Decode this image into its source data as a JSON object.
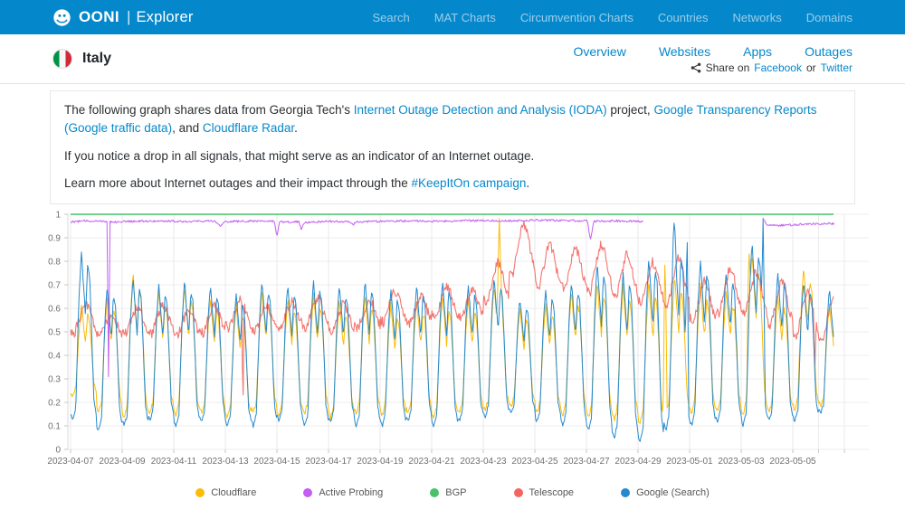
{
  "theme": {
    "brand_blue": "#0588CB",
    "header_border": "#e3e3e3"
  },
  "navbar": {
    "brand": {
      "name": "OONI",
      "separator": "|",
      "product": "Explorer"
    },
    "items": [
      "Search",
      "MAT Charts",
      "Circumvention Charts",
      "Countries",
      "Networks",
      "Domains"
    ]
  },
  "header": {
    "country": "Italy",
    "tabs": [
      "Overview",
      "Websites",
      "Apps",
      "Outages"
    ],
    "share": {
      "prefix": "Share on",
      "facebook": "Facebook",
      "conjunction": "or",
      "twitter": "Twitter"
    }
  },
  "info_box": {
    "p1": [
      {
        "t": "The following graph shares data from Georgia Tech's "
      },
      {
        "t": "Internet Outage Detection and Analysis (IODA)",
        "link": true
      },
      {
        "t": " project, "
      },
      {
        "t": "Google Transparency Reports (Google traffic data)",
        "link": true
      },
      {
        "t": ", and "
      },
      {
        "t": "Cloudflare Radar",
        "link": true
      },
      {
        "t": "."
      }
    ],
    "p2": "If you notice a drop in all signals, that might serve as an indicator of an Internet outage.",
    "p3": [
      {
        "t": "Learn more about Internet outages and their impact through the "
      },
      {
        "t": "#KeepItOn campaign",
        "link": true
      },
      {
        "t": "."
      }
    ]
  },
  "chart_data": {
    "type": "line",
    "title": "",
    "xlabel": "",
    "ylabel": "",
    "ylim": [
      0,
      1
    ],
    "grid": true,
    "legend_position": "bottom",
    "data_end_day": 29.6,
    "x_start_date": "2023-04-07",
    "y_ticks": [
      {
        "v": 1,
        "label": "1"
      },
      {
        "v": 0.9,
        "label": "0.9"
      },
      {
        "v": 0.8,
        "label": "0.8"
      },
      {
        "v": 0.7,
        "label": "0.7"
      },
      {
        "v": 0.6,
        "label": "0.6"
      },
      {
        "v": 0.5,
        "label": "0.5"
      },
      {
        "v": 0.4,
        "label": "0.4"
      },
      {
        "v": 0.3,
        "label": "0.3"
      },
      {
        "v": 0.2,
        "label": "0.2"
      },
      {
        "v": 0.1,
        "label": "0.1"
      },
      {
        "v": 0,
        "label": "0"
      }
    ],
    "x_ticks": [
      {
        "day": 0,
        "label": "2023-04-07"
      },
      {
        "day": 2,
        "label": "2023-04-09"
      },
      {
        "day": 4,
        "label": "2023-04-11"
      },
      {
        "day": 6,
        "label": "2023-04-13"
      },
      {
        "day": 8,
        "label": "2023-04-15"
      },
      {
        "day": 10,
        "label": "2023-04-17"
      },
      {
        "day": 12,
        "label": "2023-04-19"
      },
      {
        "day": 14,
        "label": "2023-04-21"
      },
      {
        "day": 16,
        "label": "2023-04-23"
      },
      {
        "day": 18,
        "label": "2023-04-25"
      },
      {
        "day": 20,
        "label": "2023-04-27"
      },
      {
        "day": 22,
        "label": "2023-04-29"
      },
      {
        "day": 24,
        "label": "2023-05-01"
      },
      {
        "day": 26,
        "label": "2023-05-03"
      },
      {
        "day": 28,
        "label": "2023-05-05"
      },
      {
        "day": 29,
        "label": ""
      },
      {
        "day": 30,
        "label": ""
      }
    ],
    "series": [
      {
        "name": "Cloudflare",
        "color": "#FBBC05",
        "mode": "diurnal",
        "noise": 0.01,
        "seed": 7,
        "width": 1,
        "shape": [
          [
            0,
            0.05
          ],
          [
            0.08,
            0.01
          ],
          [
            0.2,
            0.1
          ],
          [
            0.33,
            0.72
          ],
          [
            0.42,
            1
          ],
          [
            0.5,
            0.78
          ],
          [
            0.58,
            0.6
          ],
          [
            0.66,
            0.88
          ],
          [
            0.74,
            0.82
          ],
          [
            0.82,
            0.5
          ],
          [
            0.9,
            0.16
          ],
          [
            1,
            0.05
          ]
        ],
        "peaks": [
          0.62,
          0.66,
          0.75,
          0.68,
          0.7,
          0.65,
          0.62,
          0.68,
          0.65,
          0.66,
          0.64,
          0.66,
          0.62,
          0.64,
          0.66,
          0.64,
          0.7,
          0.6,
          0.62,
          0.68,
          0.72,
          0.7,
          0.72,
          0.74,
          0.7,
          0.68,
          0.84,
          0.66,
          0.78,
          0.62
        ],
        "troughs": [
          0.22,
          0.15,
          0.13,
          0.15,
          0.14,
          0.15,
          0.13,
          0.15,
          0.14,
          0.15,
          0.13,
          0.15,
          0.14,
          0.15,
          0.13,
          0.15,
          0.16,
          0.18,
          0.15,
          0.14,
          0.13,
          0.12,
          0.1,
          0.14,
          0.15,
          0.16,
          0.14,
          0.15,
          0.16,
          0.18
        ],
        "spikes": [
          [
            16.62,
            0.99,
            0.1
          ],
          [
            23.05,
            0.88,
            0.08
          ],
          [
            26.3,
            0.86,
            0.08
          ]
        ]
      },
      {
        "name": "Active Probing",
        "color": "#C45DF2",
        "mode": "points",
        "noise": 0.0045,
        "seed": 11,
        "width": 1,
        "segments": [
          [
            [
              0,
              0.968
            ],
            [
              0.6,
              0.972
            ],
            [
              1.3,
              0.972
            ],
            [
              1.42,
              0.968
            ],
            [
              1.47,
              0.31
            ],
            [
              1.53,
              0.968
            ],
            [
              2.5,
              0.97
            ],
            [
              3.5,
              0.972
            ],
            [
              4.5,
              0.97
            ],
            [
              5.6,
              0.972
            ],
            [
              5.82,
              0.947
            ],
            [
              5.95,
              0.968
            ],
            [
              7,
              0.972
            ],
            [
              7.9,
              0.97
            ],
            [
              8.0,
              0.9
            ],
            [
              8.1,
              0.968
            ],
            [
              8.85,
              0.968
            ],
            [
              8.95,
              0.935
            ],
            [
              9.05,
              0.965
            ],
            [
              10,
              0.97
            ],
            [
              10.85,
              0.968
            ],
            [
              10.95,
              0.952
            ],
            [
              11.05,
              0.968
            ],
            [
              12,
              0.97
            ],
            [
              13,
              0.972
            ],
            [
              14,
              0.97
            ],
            [
              15,
              0.972
            ],
            [
              16,
              0.974
            ],
            [
              17,
              0.972
            ],
            [
              18,
              0.975
            ],
            [
              19,
              0.974
            ],
            [
              20.05,
              0.972
            ],
            [
              20.15,
              0.885
            ],
            [
              20.28,
              0.97
            ],
            [
              21,
              0.972
            ],
            [
              22.2,
              0.97
            ]
          ],
          [
            [
              26.9,
              0.975
            ],
            [
              26.98,
              0.952
            ],
            [
              27.6,
              0.953
            ],
            [
              28.3,
              0.957
            ],
            [
              29.3,
              0.96
            ],
            [
              29.6,
              0.96
            ]
          ]
        ]
      },
      {
        "name": "BGP",
        "color": "#47C26B",
        "mode": "flat",
        "value": 1,
        "noise": 0,
        "seed": 3,
        "width": 1.4
      },
      {
        "name": "Telescope",
        "color": "#F4655F",
        "mode": "diurnal",
        "noise": 0.02,
        "seed": 5,
        "width": 1.1,
        "opacity": 0.9,
        "shape": [
          [
            0,
            0.2
          ],
          [
            0.15,
            0.1
          ],
          [
            0.35,
            0.55
          ],
          [
            0.55,
            1
          ],
          [
            0.7,
            0.85
          ],
          [
            0.85,
            0.45
          ],
          [
            1,
            0.2
          ]
        ],
        "peaks": [
          0.62,
          0.58,
          0.61,
          0.62,
          0.6,
          0.62,
          0.64,
          0.62,
          0.63,
          0.65,
          0.62,
          0.64,
          0.68,
          0.66,
          0.7,
          0.68,
          0.8,
          0.97,
          0.88,
          0.86,
          0.88,
          0.84,
          0.8,
          0.82,
          0.72,
          0.78,
          0.76,
          0.72,
          0.68,
          0.66
        ],
        "troughs": [
          0.48,
          0.47,
          0.48,
          0.48,
          0.47,
          0.48,
          0.5,
          0.48,
          0.5,
          0.5,
          0.48,
          0.5,
          0.52,
          0.52,
          0.54,
          0.54,
          0.6,
          0.72,
          0.66,
          0.66,
          0.64,
          0.62,
          0.6,
          0.58,
          0.52,
          0.55,
          0.55,
          0.5,
          0.46,
          0.44
        ],
        "spikes": [
          [
            6.68,
            0.15,
            0.05
          ],
          [
            28.85,
            0.33,
            0.05
          ]
        ]
      },
      {
        "name": "Google (Search)",
        "color": "#2589CE",
        "mode": "diurnal",
        "noise": 0.008,
        "seed": 9,
        "width": 1,
        "shape": [
          [
            0,
            0.04
          ],
          [
            0.08,
            0.0
          ],
          [
            0.2,
            0.08
          ],
          [
            0.33,
            0.75
          ],
          [
            0.42,
            1
          ],
          [
            0.5,
            0.8
          ],
          [
            0.58,
            0.62
          ],
          [
            0.66,
            0.92
          ],
          [
            0.74,
            0.86
          ],
          [
            0.82,
            0.52
          ],
          [
            0.9,
            0.14
          ],
          [
            1,
            0.04
          ]
        ],
        "peaks": [
          0.84,
          0.7,
          0.73,
          0.7,
          0.72,
          0.7,
          0.66,
          0.72,
          0.7,
          0.72,
          0.7,
          0.72,
          0.68,
          0.7,
          0.72,
          0.7,
          0.73,
          0.64,
          0.68,
          0.72,
          0.8,
          0.76,
          0.82,
          0.88,
          0.8,
          0.76,
          0.88,
          0.75,
          0.72,
          0.68
        ],
        "troughs": [
          0.12,
          0.08,
          0.1,
          0.12,
          0.1,
          0.12,
          0.1,
          0.1,
          0.12,
          0.1,
          0.12,
          0.1,
          0.1,
          0.12,
          0.1,
          0.12,
          0.14,
          0.15,
          0.12,
          0.1,
          0.08,
          0.05,
          0.03,
          0.08,
          0.1,
          0.12,
          0.1,
          0.12,
          0.12,
          0.15
        ],
        "spikes": [
          [
            23.4,
            0.97,
            0.09
          ],
          [
            23.9,
            0.99,
            0.07
          ],
          [
            26.85,
            0.98,
            0.08
          ]
        ]
      }
    ]
  }
}
